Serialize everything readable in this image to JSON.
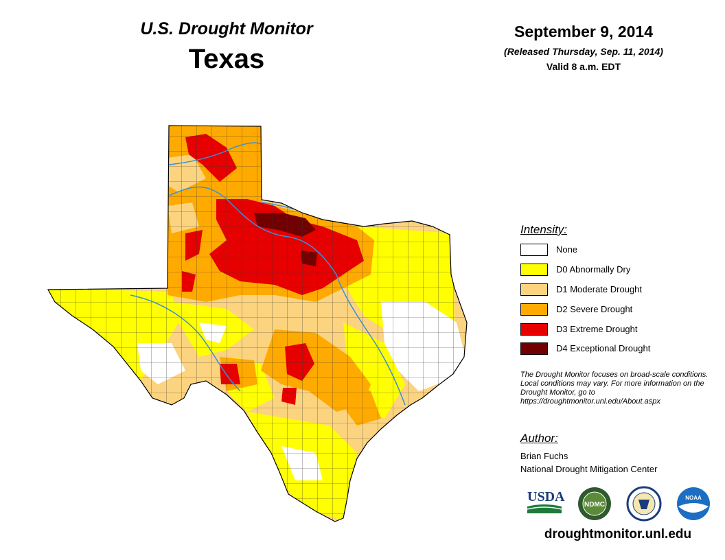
{
  "header": {
    "product": "U.S. Drought Monitor",
    "region": "Texas",
    "date": "September 9, 2014",
    "released": "(Released Thursday, Sep. 11, 2014)",
    "valid": "Valid 8 a.m. EDT"
  },
  "legend": {
    "title": "Intensity:",
    "items": [
      {
        "label": "None",
        "color": "#ffffff"
      },
      {
        "label": "D0 Abnormally Dry",
        "color": "#ffff00"
      },
      {
        "label": "D1 Moderate Drought",
        "color": "#fcd37f"
      },
      {
        "label": "D2 Severe Drought",
        "color": "#ffaa00"
      },
      {
        "label": "D3 Extreme Drought",
        "color": "#e60000"
      },
      {
        "label": "D4 Exceptional Drought",
        "color": "#730000"
      }
    ]
  },
  "note": "The Drought Monitor focuses on broad-scale conditions. Local conditions may vary. For more information on the Drought Monitor, go to https://droughtmonitor.unl.edu/About.aspx",
  "author": {
    "heading": "Author:",
    "name": "Brian Fuchs",
    "org": "National Drought Mitigation Center"
  },
  "logos": {
    "usda": "USDA",
    "ndmc": "NDMC",
    "noaa": "NOAA"
  },
  "site_url": "droughtmonitor.unl.edu",
  "colors": {
    "river": "#3a8fd9",
    "county_border": "#333333"
  }
}
